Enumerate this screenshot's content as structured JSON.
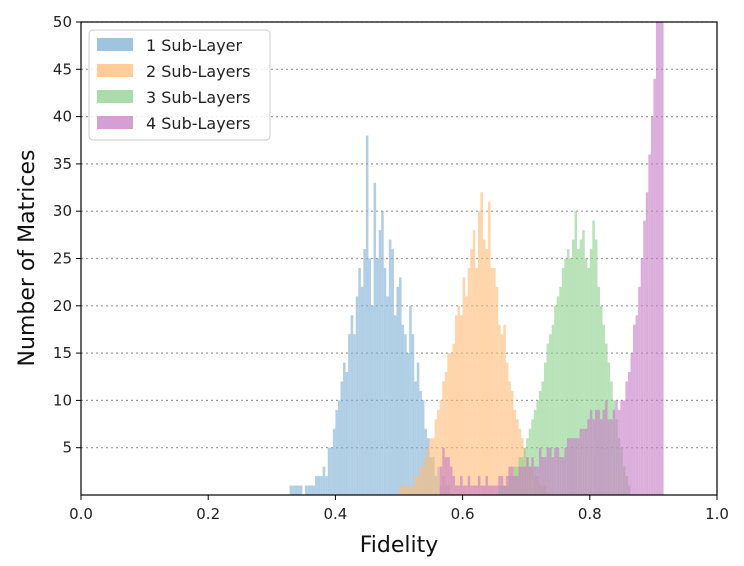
{
  "chart_data": {
    "type": "bar",
    "subtype": "histogram",
    "title": "",
    "xlabel": "Fidelity",
    "ylabel": "Number of Matrices",
    "xlim": [
      0.0,
      1.0
    ],
    "ylim": [
      0,
      50
    ],
    "x_ticks": [
      "0.0",
      "0.2",
      "0.4",
      "0.6",
      "0.8",
      "1.0"
    ],
    "y_ticks": [
      "5",
      "10",
      "15",
      "20",
      "25",
      "30",
      "35",
      "40",
      "45",
      "50"
    ],
    "grid": "horizontal-dotted",
    "legend_position": "top-left",
    "bin_width": 0.004,
    "series": [
      {
        "name": "1 Sub-Layer",
        "color": "#7fb0d5",
        "bin_start": 0.328,
        "counts": [
          1,
          1,
          1,
          1,
          1,
          0,
          1,
          1,
          1,
          1,
          2,
          2,
          2,
          3,
          2,
          5,
          5,
          7,
          9,
          10,
          12,
          14,
          13,
          17,
          19,
          17,
          21,
          24,
          22,
          26,
          38,
          25,
          20,
          33,
          25,
          28,
          30,
          24,
          21,
          27,
          26,
          19,
          22,
          23,
          18,
          17,
          15,
          20,
          17,
          12,
          14,
          11,
          10,
          7,
          6,
          4,
          4,
          2,
          3,
          1,
          2,
          1,
          1
        ]
      },
      {
        "name": "2 Sub-Layers",
        "color": "#ffbb78",
        "bin_start": 0.5,
        "counts": [
          1,
          1,
          1,
          1,
          1,
          1,
          2,
          2,
          3,
          3,
          4,
          5,
          6,
          6,
          8,
          9,
          10,
          12,
          13,
          15,
          15,
          16,
          19,
          20,
          19,
          23,
          21,
          24,
          26,
          28,
          24,
          30,
          32,
          27,
          26,
          31,
          24,
          24,
          22,
          18,
          17,
          18,
          14,
          12,
          11,
          9,
          8,
          7,
          6,
          5,
          4,
          3,
          3,
          2,
          2,
          1,
          1,
          1
        ]
      },
      {
        "name": "3 Sub-Layers",
        "color": "#8dd08d",
        "bin_start": 0.656,
        "counts": [
          1,
          1,
          1,
          1,
          2,
          2,
          3,
          3,
          4,
          4,
          5,
          6,
          7,
          8,
          9,
          10,
          11,
          12,
          14,
          16,
          17,
          18,
          20,
          21,
          22,
          24,
          25,
          26,
          25,
          27,
          30,
          26,
          27,
          28,
          25,
          24,
          26,
          29,
          27,
          22,
          20,
          18,
          16,
          14,
          12,
          10,
          8,
          6,
          5,
          3,
          2,
          1
        ]
      },
      {
        "name": "4 Sub-Layers",
        "color": "#c77dc7",
        "bin_start": 0.564,
        "counts": [
          3,
          5,
          4,
          4,
          3,
          2,
          1,
          1,
          2,
          1,
          1,
          2,
          1,
          1,
          1,
          2,
          1,
          1,
          2,
          1,
          1,
          1,
          1,
          2,
          2,
          1,
          2,
          3,
          3,
          2,
          2,
          3,
          3,
          3,
          4,
          3,
          4,
          3,
          3,
          5,
          4,
          4,
          5,
          5,
          4,
          5,
          5,
          4,
          4,
          5,
          6,
          6,
          6,
          6,
          6,
          7,
          7,
          7,
          8,
          9,
          8,
          9,
          9,
          8,
          9,
          10,
          8,
          8,
          9,
          10,
          9,
          10,
          10,
          12,
          13,
          15,
          18,
          19,
          22,
          25,
          29,
          32,
          36,
          40,
          44,
          50,
          50,
          50
        ]
      }
    ]
  }
}
